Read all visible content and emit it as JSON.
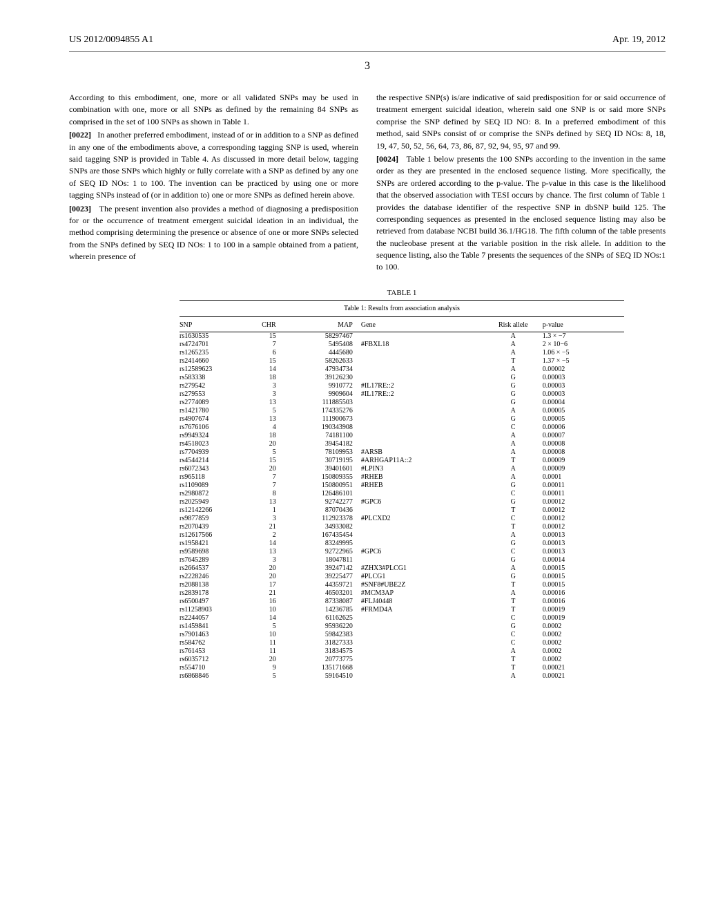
{
  "header": {
    "pub_num": "US 2012/0094855 A1",
    "pub_date": "Apr. 19, 2012"
  },
  "page_number": "3",
  "left_column": {
    "para0_text": "According to this embodiment, one, more or all validated SNPs may be used in combination with one, more or all SNPs as defined by the remaining 84 SNPs as comprised in the set of 100 SNPs as shown in Table 1.",
    "para1_num": "[0022]",
    "para1_text": "In another preferred embodiment, instead of or in addition to a SNP as defined in any one of the embodiments above, a corresponding tagging SNP is used, wherein said tagging SNP is provided in Table 4. As discussed in more detail below, tagging SNPs are those SNPs which highly or fully correlate with a SNP as defined by any one of SEQ ID NOs: 1 to 100. The invention can be practiced by using one or more tagging SNPs instead of (or in addition to) one or more SNPs as defined herein above.",
    "para2_num": "[0023]",
    "para2_text": "The present invention also provides a method of diagnosing a predisposition for or the occurrence of treatment emergent suicidal ideation in an individual, the method comprising determining the presence or absence of one or more SNPs selected from the SNPs defined by SEQ ID NOs: 1 to 100 in a sample obtained from a patient, wherein presence of"
  },
  "right_column": {
    "para1_text": "the respective SNP(s) is/are indicative of said predisposition for or said occurrence of treatment emergent suicidal ideation, wherein said one SNP is or said more SNPs comprise the SNP defined by SEQ ID NO: 8. In a preferred embodiment of this method, said SNPs consist of or comprise the SNPs defined by SEQ ID NOs: 8, 18, 19, 47, 50, 52, 56, 64, 73, 86, 87, 92, 94, 95, 97 and 99.",
    "para2_num": "[0024]",
    "para2_text": "Table 1 below presents the 100 SNPs according to the invention in the same order as they are presented in the enclosed sequence listing. More specifically, the SNPs are ordered according to the p-value. The p-value in this case is the likelihood that the observed association with TESI occurs by chance. The first column of Table 1 provides the database identifier of the respective SNP in dbSNP build 125. The corresponding sequences as presented in the enclosed sequence listing may also be retrieved from database NCBI build 36.1/HG18. The fifth column of the table presents the nucleobase present at the variable position in the risk allele. In addition to the sequence listing, also the Table 7 presents the sequences of the SNPs of SEQ ID NOs:1 to 100."
  },
  "table": {
    "label": "TABLE 1",
    "caption": "Table 1: Results from association analysis",
    "columns": [
      "SNP",
      "CHR",
      "MAP",
      "Gene",
      "Risk allele",
      "p-value"
    ],
    "rows": [
      [
        "rs1630535",
        "15",
        "58297467",
        "",
        "A",
        "1.3 × −7"
      ],
      [
        "rs4724701",
        "7",
        "5495408",
        "#FBXL18",
        "A",
        "2 × 10−6"
      ],
      [
        "rs1265235",
        "6",
        "4445680",
        "",
        "A",
        "1.06 × −5"
      ],
      [
        "rs2414660",
        "15",
        "58262633",
        "",
        "T",
        "1.37 × −5"
      ],
      [
        "rs12589623",
        "14",
        "47934734",
        "",
        "A",
        "0.00002"
      ],
      [
        "rs583338",
        "18",
        "39126230",
        "",
        "G",
        "0.00003"
      ],
      [
        "rs279542",
        "3",
        "9910772",
        "#IL17RE::2",
        "G",
        "0.00003"
      ],
      [
        "rs279553",
        "3",
        "9909604",
        "#IL17RE::2",
        "G",
        "0.00003"
      ],
      [
        "rs2774089",
        "13",
        "111885503",
        "",
        "G",
        "0.00004"
      ],
      [
        "rs1421780",
        "5",
        "174335276",
        "",
        "A",
        "0.00005"
      ],
      [
        "rs4907674",
        "13",
        "111900673",
        "",
        "G",
        "0.00005"
      ],
      [
        "rs7676106",
        "4",
        "190343908",
        "",
        "C",
        "0.00006"
      ],
      [
        "rs9949324",
        "18",
        "74181100",
        "",
        "A",
        "0.00007"
      ],
      [
        "rs4518023",
        "20",
        "39454182",
        "",
        "A",
        "0.00008"
      ],
      [
        "rs7704939",
        "5",
        "78109953",
        "#ARSB",
        "A",
        "0.00008"
      ],
      [
        "rs4544214",
        "15",
        "30719195",
        "#ARHGAP11A::2",
        "T",
        "0.00009"
      ],
      [
        "rs6072343",
        "20",
        "39401601",
        "#LPIN3",
        "A",
        "0.00009"
      ],
      [
        "rs965118",
        "7",
        "150809355",
        "#RHEB",
        "A",
        "0.0001"
      ],
      [
        "rs1109089",
        "7",
        "150800951",
        "#RHEB",
        "G",
        "0.00011"
      ],
      [
        "rs2980872",
        "8",
        "126486101",
        "",
        "C",
        "0.00011"
      ],
      [
        "rs2025949",
        "13",
        "92742277",
        "#GPC6",
        "G",
        "0.00012"
      ],
      [
        "rs12142266",
        "1",
        "87070436",
        "",
        "T",
        "0.00012"
      ],
      [
        "rs9877859",
        "3",
        "112923378",
        "#PLCXD2",
        "C",
        "0.00012"
      ],
      [
        "rs2070439",
        "21",
        "34933082",
        "",
        "T",
        "0.00012"
      ],
      [
        "rs12617566",
        "2",
        "167435454",
        "",
        "A",
        "0.00013"
      ],
      [
        "rs1958421",
        "14",
        "83249995",
        "",
        "G",
        "0.00013"
      ],
      [
        "rs9589698",
        "13",
        "92722965",
        "#GPC6",
        "C",
        "0.00013"
      ],
      [
        "rs7645289",
        "3",
        "18047811",
        "",
        "G",
        "0.00014"
      ],
      [
        "rs2664537",
        "20",
        "39247142",
        "#ZHX3#PLCG1",
        "A",
        "0.00015"
      ],
      [
        "rs2228246",
        "20",
        "39225477",
        "#PLCG1",
        "G",
        "0.00015"
      ],
      [
        "rs2088138",
        "17",
        "44359721",
        "#SNF8#UBE2Z",
        "T",
        "0.00015"
      ],
      [
        "rs2839178",
        "21",
        "46503201",
        "#MCM3AP",
        "A",
        "0.00016"
      ],
      [
        "rs6500497",
        "16",
        "87338087",
        "#FLJ40448",
        "T",
        "0.00016"
      ],
      [
        "rs11258903",
        "10",
        "14236785",
        "#FRMD4A",
        "T",
        "0.00019"
      ],
      [
        "rs2244057",
        "14",
        "61162625",
        "",
        "C",
        "0.00019"
      ],
      [
        "rs1459841",
        "5",
        "95936220",
        "",
        "G",
        "0.0002"
      ],
      [
        "rs7901463",
        "10",
        "59842383",
        "",
        "C",
        "0.0002"
      ],
      [
        "rs584762",
        "11",
        "31827333",
        "",
        "C",
        "0.0002"
      ],
      [
        "rs761453",
        "11",
        "31834575",
        "",
        "A",
        "0.0002"
      ],
      [
        "rs6035712",
        "20",
        "20773775",
        "",
        "T",
        "0.0002"
      ],
      [
        "rs554710",
        "9",
        "135171668",
        "",
        "T",
        "0.00021"
      ],
      [
        "rs6868846",
        "5",
        "59164510",
        "",
        "A",
        "0.00021"
      ]
    ]
  }
}
